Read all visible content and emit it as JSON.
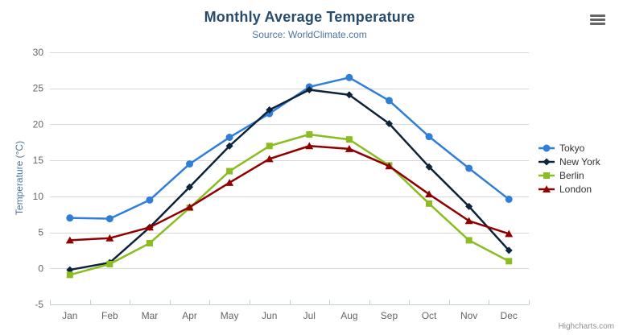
{
  "header": {
    "title": "Monthly Average Temperature",
    "subtitle": "Source: WorldClimate.com"
  },
  "export_menu": {
    "icon": "hamburger-menu-icon"
  },
  "credits": {
    "label": "Highcharts.com"
  },
  "chart_data": {
    "type": "line",
    "title": "Monthly Average Temperature",
    "subtitle": "Source: WorldClimate.com",
    "xlabel": "",
    "ylabel": "Temperature (°C)",
    "ylim": [
      -5,
      30
    ],
    "ytick_step": 5,
    "yticks": [
      -5,
      0,
      5,
      10,
      15,
      20,
      25,
      30
    ],
    "grid": true,
    "legend_position": "right",
    "categories": [
      "Jan",
      "Feb",
      "Mar",
      "Apr",
      "May",
      "Jun",
      "Jul",
      "Aug",
      "Sep",
      "Oct",
      "Nov",
      "Dec"
    ],
    "series": [
      {
        "name": "Tokyo",
        "color": "#2f7ed8",
        "marker": "circle",
        "values": [
          7.0,
          6.9,
          9.5,
          14.5,
          18.2,
          21.5,
          25.2,
          26.5,
          23.3,
          18.3,
          13.9,
          9.6
        ]
      },
      {
        "name": "New York",
        "color": "#0d233a",
        "marker": "diamond",
        "values": [
          -0.2,
          0.8,
          5.7,
          11.3,
          17.0,
          22.0,
          24.8,
          24.1,
          20.1,
          14.1,
          8.6,
          2.5
        ]
      },
      {
        "name": "Berlin",
        "color": "#8bbc21",
        "marker": "square",
        "values": [
          -0.9,
          0.6,
          3.5,
          8.4,
          13.5,
          17.0,
          18.6,
          17.9,
          14.3,
          9.0,
          3.9,
          1.0
        ]
      },
      {
        "name": "London",
        "color": "#910000",
        "marker": "triangle",
        "values": [
          3.9,
          4.2,
          5.7,
          8.5,
          11.9,
          15.2,
          17.0,
          16.6,
          14.2,
          10.3,
          6.6,
          4.8
        ]
      }
    ],
    "style": {
      "title_color": "#274b6d",
      "subtitle_color": "#4d759e",
      "axis_title_color": "#4d759e",
      "tick_label_color": "#666666",
      "grid_color": "#d8d8d8",
      "axis_line_color": "#c0d0e0",
      "legend_text_color": "#333333",
      "credits_color": "#909090"
    }
  }
}
